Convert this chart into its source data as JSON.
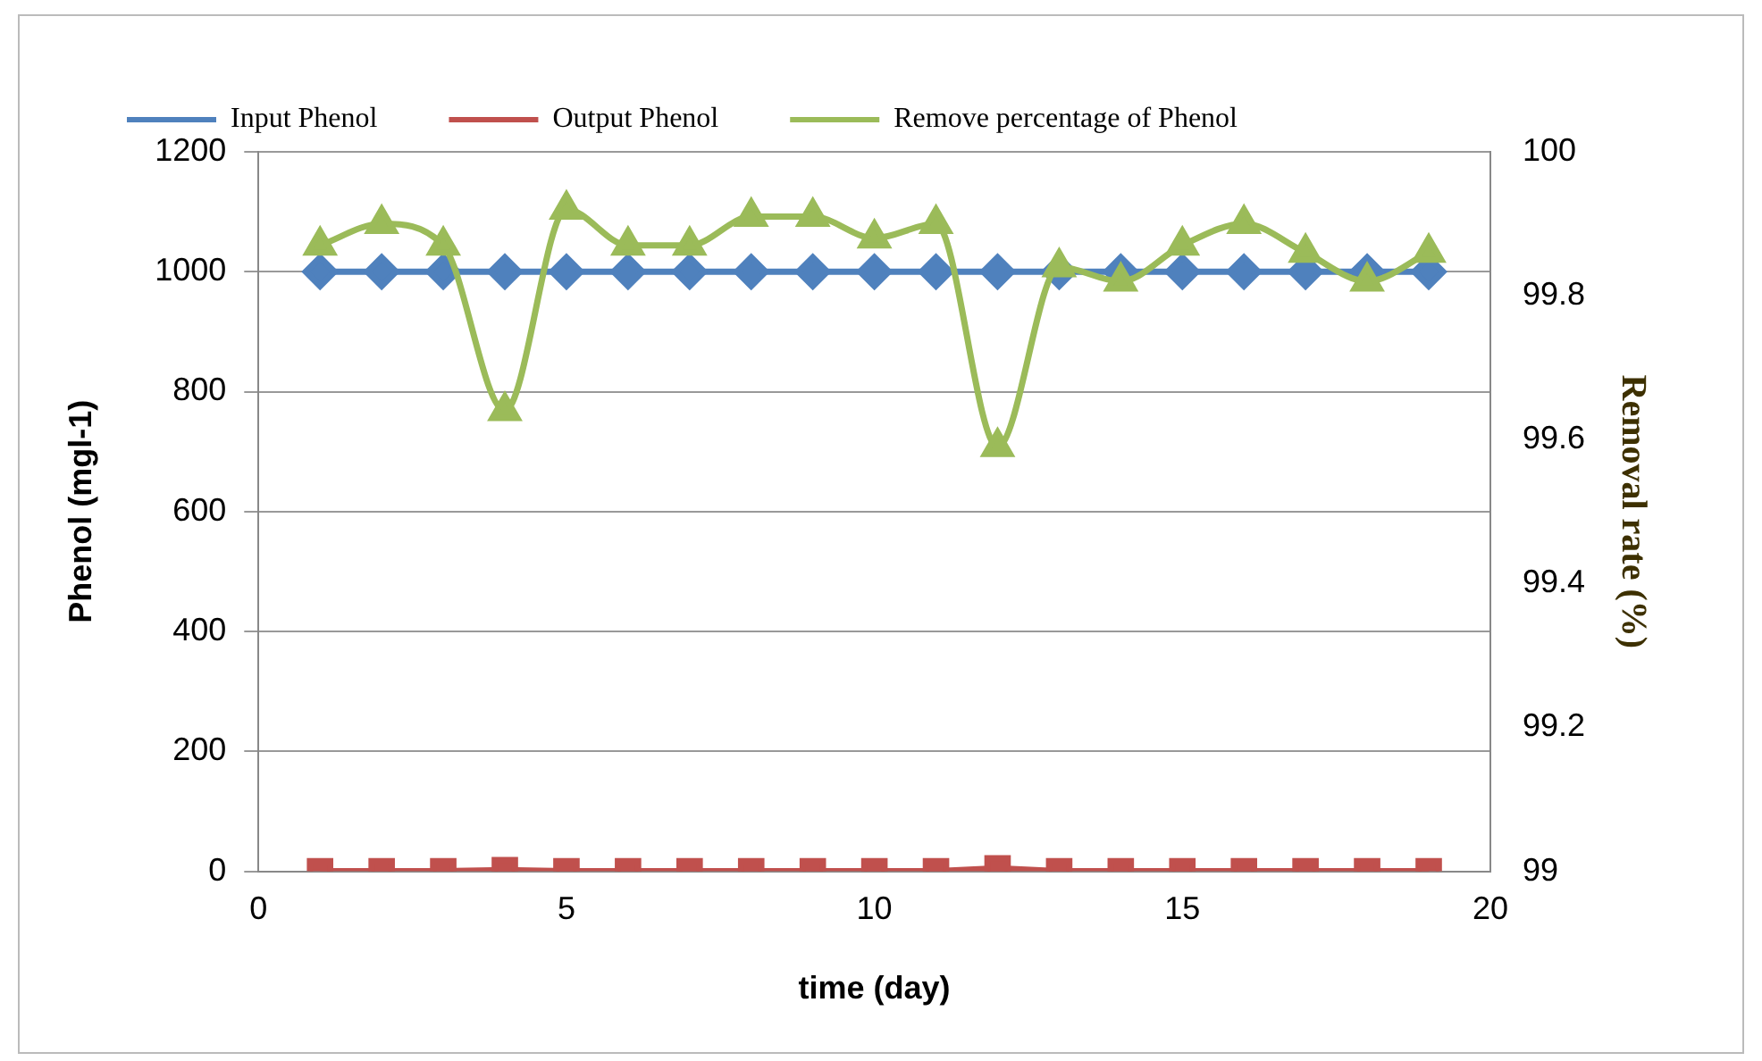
{
  "chart_data": {
    "type": "line",
    "xlabel": "time (day)",
    "ylabel": "Phenol (mgl-1)",
    "y2label": "Removal rate (%)",
    "x": [
      1,
      2,
      3,
      4,
      5,
      6,
      7,
      8,
      9,
      10,
      11,
      12,
      13,
      14,
      15,
      16,
      17,
      18,
      19
    ],
    "series": [
      {
        "name": "Input Phenol",
        "color": "#4f81bd",
        "marker": "diamond",
        "values": [
          1000,
          1000,
          1000,
          1000,
          1000,
          1000,
          1000,
          1000,
          1000,
          1000,
          1000,
          1000,
          1000,
          1000,
          1000,
          1000,
          1000,
          1000,
          1000
        ]
      },
      {
        "name": "Output Phenol",
        "color": "#c0504d",
        "marker": "square",
        "values": [
          0,
          0,
          0,
          2,
          0,
          0,
          0,
          0,
          0,
          0,
          0,
          5,
          0,
          0,
          0,
          0,
          0,
          0,
          0
        ]
      },
      {
        "name": "Remove percentage of Phenol",
        "color": "#9bbb59",
        "marker": "triangle",
        "axis": "y2",
        "values": [
          99.87,
          99.9,
          99.87,
          99.64,
          99.92,
          99.87,
          99.87,
          99.91,
          99.91,
          99.88,
          99.9,
          99.59,
          99.84,
          99.82,
          99.87,
          99.9,
          99.86,
          99.82,
          99.86
        ]
      }
    ],
    "xlim": [
      0,
      20
    ],
    "xticks": [
      0,
      5,
      10,
      15,
      20
    ],
    "ylim": [
      0,
      1200
    ],
    "yticks": [
      0,
      200,
      400,
      600,
      800,
      1000,
      1200
    ],
    "y2lim": [
      99,
      100
    ],
    "y2ticks": [
      99,
      99.2,
      99.4,
      99.6,
      99.8,
      100
    ],
    "grid": "y",
    "legend": "top"
  }
}
